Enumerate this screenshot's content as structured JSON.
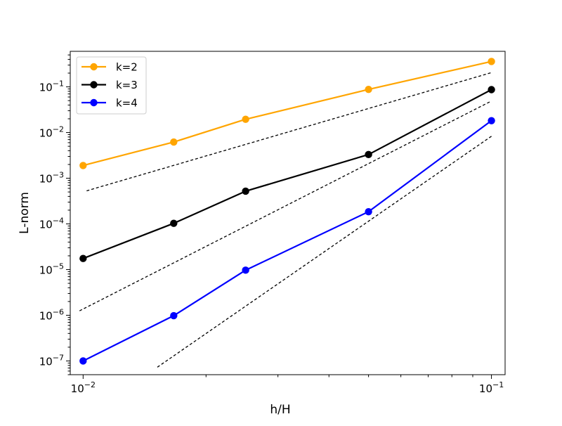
{
  "chart_data": {
    "type": "line",
    "title": "",
    "xlabel": "h/H",
    "ylabel": "L-norm",
    "xscale": "log",
    "yscale": "log",
    "xlim": [
      0.0093,
      0.108
    ],
    "ylim": [
      5e-08,
      0.6
    ],
    "grid": false,
    "legend_position": "top-left",
    "x": [
      0.01,
      0.01667,
      0.025,
      0.05,
      0.1
    ],
    "series": [
      {
        "name": "k=2",
        "color": "#ffa500",
        "values": [
          0.0019,
          0.0062,
          0.0195,
          0.088,
          0.36
        ]
      },
      {
        "name": "k=3",
        "color": "#000000",
        "values": [
          1.75e-05,
          0.000103,
          0.00052,
          0.0033,
          0.087
        ]
      },
      {
        "name": "k=4",
        "color": "#0000ff",
        "values": [
          1e-07,
          9.8e-07,
          9.7e-06,
          0.000185,
          0.0182
        ]
      }
    ],
    "reference_lines": [
      {
        "name": "slope-2",
        "style": "dashed",
        "color": "#000000",
        "x": [
          0.0102,
          0.1
        ],
        "y": [
          0.00053,
          0.205
        ]
      },
      {
        "name": "slope-3",
        "style": "dashed",
        "color": "#000000",
        "x": [
          0.0098,
          0.1
        ],
        "y": [
          1.25e-06,
          0.049
        ]
      },
      {
        "name": "slope-4",
        "style": "dashed",
        "color": "#000000",
        "x": [
          0.0152,
          0.1
        ],
        "y": [
          7.3e-08,
          0.0083
        ]
      }
    ],
    "xticks": [
      {
        "value": 0.01,
        "base": "10",
        "exp": "−2"
      },
      {
        "value": 0.1,
        "base": "10",
        "exp": "−1"
      }
    ],
    "yticks": [
      {
        "value": 1e-07,
        "base": "10",
        "exp": "−7"
      },
      {
        "value": 1e-06,
        "base": "10",
        "exp": "−6"
      },
      {
        "value": 1e-05,
        "base": "10",
        "exp": "−5"
      },
      {
        "value": 0.0001,
        "base": "10",
        "exp": "−4"
      },
      {
        "value": 0.001,
        "base": "10",
        "exp": "−3"
      },
      {
        "value": 0.01,
        "base": "10",
        "exp": "−2"
      },
      {
        "value": 0.1,
        "base": "10",
        "exp": "−1"
      }
    ]
  }
}
